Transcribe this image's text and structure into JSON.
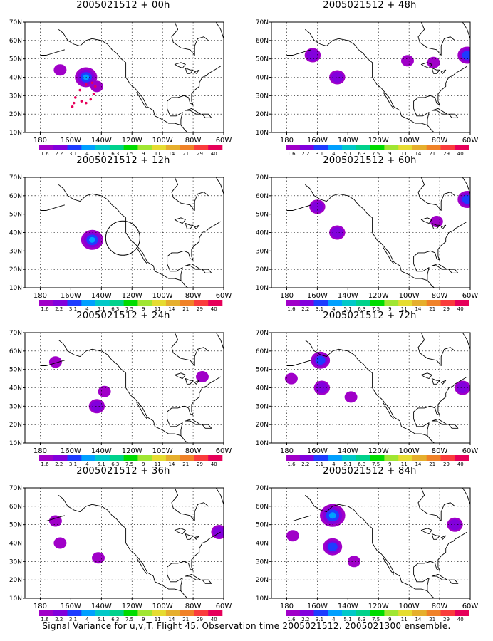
{
  "caption": "Signal Variance for u,v,T. Flight 45. Observation time 2005021512. 2005021300 ensemble.",
  "axes": {
    "lat_ticks": [
      "10N",
      "20N",
      "30N",
      "40N",
      "50N",
      "60N",
      "70N"
    ],
    "lon_ticks": [
      "180",
      "160W",
      "140W",
      "120W",
      "100W",
      "80W",
      "60W"
    ]
  },
  "colorbar": {
    "labels": [
      "1.6",
      "2.2",
      "3.1",
      "4",
      "5.1",
      "6.3",
      "7.5",
      "9",
      "11",
      "14",
      "21",
      "29",
      "40"
    ],
    "colors": [
      "#a000c8",
      "#8200dc",
      "#1e3cff",
      "#00a0ff",
      "#00c8c8",
      "#00d28c",
      "#00dc00",
      "#a0e632",
      "#e6dc32",
      "#e6af2d",
      "#f08228",
      "#fa3c3c",
      "#e6005a"
    ]
  },
  "chart_data": [
    {
      "type": "heatmap",
      "title": "2005021512 + 00h",
      "lead_hours": 0,
      "blobs": [
        {
          "lat": 40,
          "lon": -150,
          "peak_level": "4"
        },
        {
          "lat": 44,
          "lon": -167,
          "peak_level": "1.6"
        },
        {
          "lat": 35,
          "lon": -143,
          "peak_level": "1.6"
        }
      ],
      "markers": [
        {
          "type": "dots",
          "desc": "flight track"
        }
      ]
    },
    {
      "type": "heatmap",
      "title": "2005021512 + 12h",
      "lead_hours": 12,
      "blobs": [
        {
          "lat": 36,
          "lon": -146,
          "peak_level": "4"
        }
      ],
      "markers": [
        {
          "type": "circle",
          "lat": 37,
          "lon": -126
        }
      ]
    },
    {
      "type": "heatmap",
      "title": "2005021512 + 24h",
      "lead_hours": 24,
      "blobs": [
        {
          "lat": 30,
          "lon": -143,
          "peak_level": "2.2"
        },
        {
          "lat": 54,
          "lon": -170,
          "peak_level": "1.6"
        },
        {
          "lat": 46,
          "lon": -74,
          "peak_level": "1.6"
        },
        {
          "lat": 38,
          "lon": -138,
          "peak_level": "1.6"
        }
      ]
    },
    {
      "type": "heatmap",
      "title": "2005021512 + 36h",
      "lead_hours": 36,
      "blobs": [
        {
          "lat": 46,
          "lon": -63,
          "peak_level": "2.2"
        },
        {
          "lat": 52,
          "lon": -170,
          "peak_level": "1.6"
        },
        {
          "lat": 32,
          "lon": -142,
          "peak_level": "1.6"
        },
        {
          "lat": 40,
          "lon": -167,
          "peak_level": "1.6"
        }
      ]
    },
    {
      "type": "heatmap",
      "title": "2005021512 + 48h",
      "lead_hours": 48,
      "blobs": [
        {
          "lat": 52,
          "lon": -163,
          "peak_level": "2.2"
        },
        {
          "lat": 40,
          "lon": -147,
          "peak_level": "2.2"
        },
        {
          "lat": 52,
          "lon": -62,
          "peak_level": "3.1"
        },
        {
          "lat": 48,
          "lon": -84,
          "peak_level": "1.6"
        },
        {
          "lat": 49,
          "lon": -101,
          "peak_level": "1.6"
        }
      ]
    },
    {
      "type": "heatmap",
      "title": "2005021512 + 60h",
      "lead_hours": 60,
      "blobs": [
        {
          "lat": 54,
          "lon": -160,
          "peak_level": "2.2"
        },
        {
          "lat": 40,
          "lon": -147,
          "peak_level": "2.2"
        },
        {
          "lat": 58,
          "lon": -62,
          "peak_level": "3.1"
        },
        {
          "lat": 46,
          "lon": -82,
          "peak_level": "1.6"
        }
      ]
    },
    {
      "type": "heatmap",
      "title": "2005021512 + 72h",
      "lead_hours": 72,
      "blobs": [
        {
          "lat": 55,
          "lon": -158,
          "peak_level": "3.1"
        },
        {
          "lat": 40,
          "lon": -157,
          "peak_level": "2.2"
        },
        {
          "lat": 35,
          "lon": -138,
          "peak_level": "1.6"
        },
        {
          "lat": 45,
          "lon": -177,
          "peak_level": "1.6"
        },
        {
          "lat": 40,
          "lon": -65,
          "peak_level": "2.2"
        }
      ]
    },
    {
      "type": "heatmap",
      "title": "2005021512 + 84h",
      "lead_hours": 84,
      "blobs": [
        {
          "lat": 55,
          "lon": -150,
          "peak_level": "5.1"
        },
        {
          "lat": 38,
          "lon": -150,
          "peak_level": "3.1"
        },
        {
          "lat": 44,
          "lon": -176,
          "peak_level": "1.6"
        },
        {
          "lat": 50,
          "lon": -70,
          "peak_level": "2.2"
        },
        {
          "lat": 30,
          "lon": -136,
          "peak_level": "1.6"
        }
      ]
    }
  ]
}
